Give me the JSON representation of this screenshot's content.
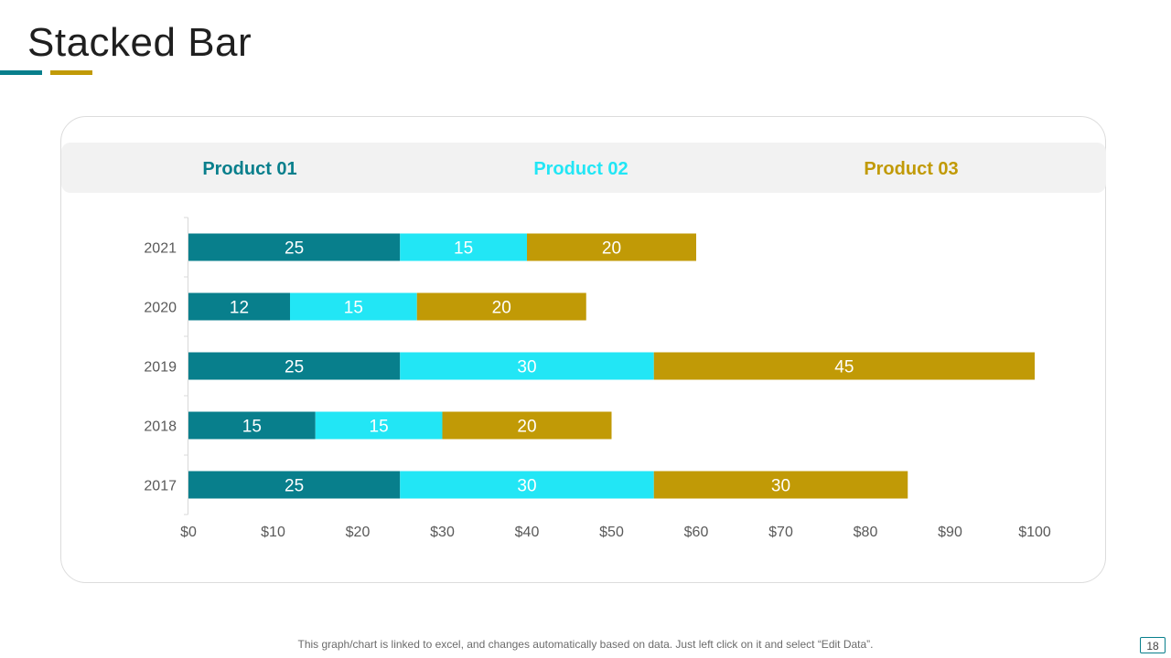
{
  "page": {
    "title": "Stacked Bar",
    "footer_note": "This graph/chart is linked to excel, and changes automatically based on data. Just left click on it and select “Edit Data”.",
    "page_number": "18"
  },
  "colors": {
    "product_01": "#087f8c",
    "product_02": "#22e6f5",
    "product_03": "#c19a06",
    "axis_text": "#595959",
    "label_text": "#ffffff"
  },
  "chart_data": {
    "type": "bar",
    "orientation": "horizontal",
    "stacked": true,
    "categories": [
      "2021",
      "2020",
      "2019",
      "2018",
      "2017"
    ],
    "series": [
      {
        "name": "Product 01",
        "values": [
          25,
          12,
          25,
          15,
          25
        ]
      },
      {
        "name": "Product 02",
        "values": [
          15,
          15,
          30,
          15,
          30
        ]
      },
      {
        "name": "Product 03",
        "values": [
          20,
          20,
          45,
          20,
          30
        ]
      }
    ],
    "xlim": [
      0,
      100
    ],
    "x_ticks": [
      0,
      10,
      20,
      30,
      40,
      50,
      60,
      70,
      80,
      90,
      100
    ],
    "x_tick_labels": [
      "$0",
      "$10",
      "$20",
      "$30",
      "$40",
      "$50",
      "$60",
      "$70",
      "$80",
      "$90",
      "$100"
    ],
    "legend_position": "top",
    "grid": false,
    "title": "",
    "xlabel": "",
    "ylabel": ""
  }
}
